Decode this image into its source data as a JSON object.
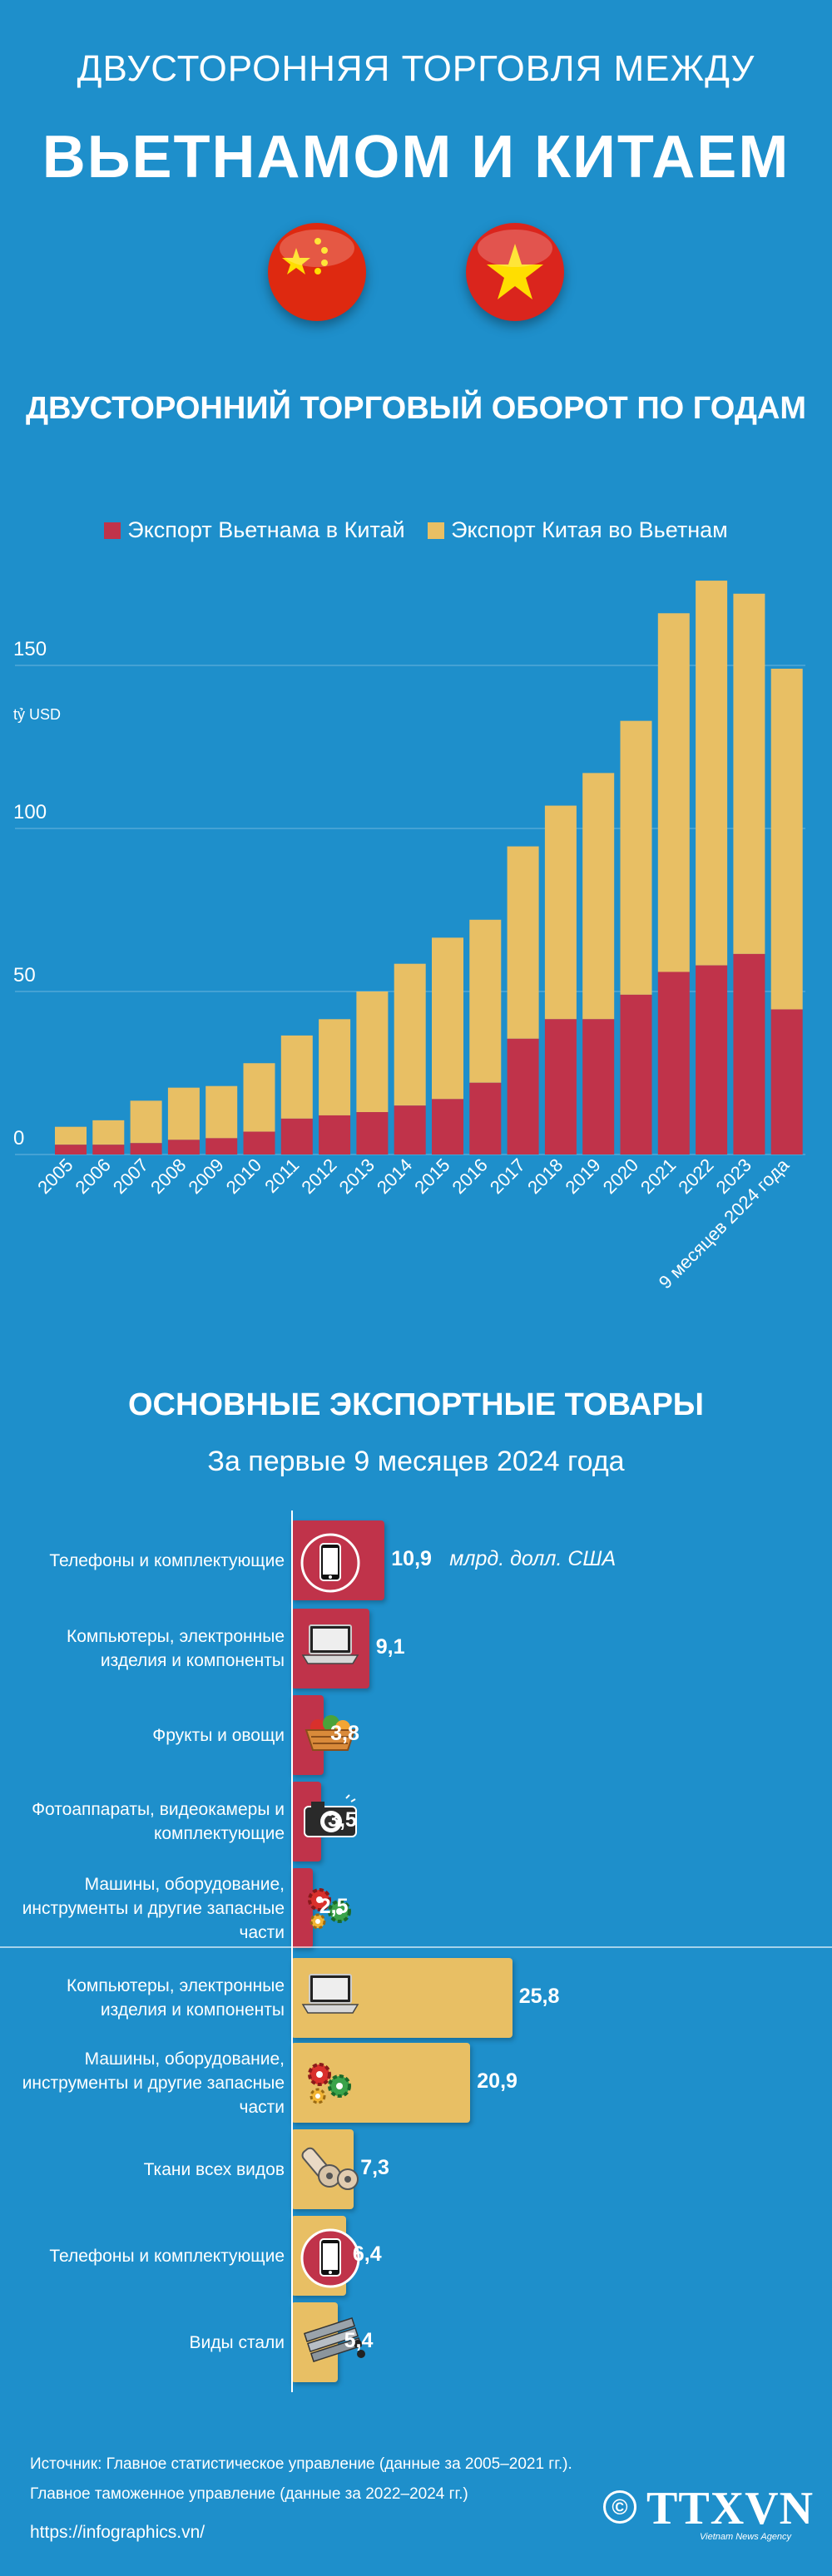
{
  "header": {
    "title_line1": "ДВУСТОРОННЯЯ ТОРГОВЛЯ МЕЖДУ",
    "title_line2": "ВЬЕТНАМОМ И КИТАЕМ"
  },
  "section1": {
    "title": "ДВУСТОРОННИЙ ТОРГОВЫЙ ОБОРОТ ПО ГОДАМ"
  },
  "section2": {
    "title": "ОСНОВНЫЕ ЭКСПОРТНЫЕ ТОВАРЫ",
    "subtitle": "За первые 9 месяцев 2024 года",
    "unit": "млрд. долл. США"
  },
  "colors": {
    "vn_export": "#c0334a",
    "cn_export": "#e8bf64",
    "background": "#1e8fcb"
  },
  "chart_data": [
    {
      "type": "bar",
      "stacked": true,
      "ylabel": "tỷ USD",
      "ylim": [
        0,
        180
      ],
      "yticks": [
        0,
        50,
        100,
        150
      ],
      "grid": true,
      "legend_position": "top",
      "categories": [
        "2005",
        "2006",
        "2007",
        "2008",
        "2009",
        "2010",
        "2011",
        "2012",
        "2013",
        "2014",
        "2015",
        "2016",
        "2017",
        "2018",
        "2019",
        "2020",
        "2021",
        "2022",
        "2023",
        "9 месяцев 2024 года"
      ],
      "series": [
        {
          "name": "Экспорт Вьетнама в Китай",
          "color": "#c0334a",
          "values": [
            3,
            3,
            3.5,
            4.5,
            5,
            7,
            11,
            12,
            13,
            15,
            17,
            22,
            35.5,
            41.5,
            41.5,
            49,
            56,
            58,
            61.5,
            44.5
          ]
        },
        {
          "name": "Экспорт Китая во Вьетнам",
          "color": "#e8bf64",
          "values": [
            5.5,
            7.5,
            13,
            16,
            16,
            21,
            25.5,
            29.5,
            37,
            43.5,
            49.5,
            50,
            59,
            65.5,
            75.5,
            84,
            110,
            118,
            110.5,
            104.5
          ]
        }
      ]
    },
    {
      "type": "bar",
      "orientation": "horizontal",
      "title": "ОСНОВНЫЕ ЭКСПОРТНЫЕ ТОВАРЫ",
      "unit": "млрд. долл. США",
      "series": [
        {
          "name": "Экспорт Вьетнама в Китай",
          "color": "#c0334a",
          "categories": [
            "Телефоны и комплектующие",
            "Компьютеры, электронные изделия и компоненты",
            "Фрукты и овощи",
            "Фотоаппараты, видеокамеры и комплектующие",
            "Машины, оборудование, инструменты и другие запасные части"
          ],
          "values": [
            10.9,
            9.1,
            3.8,
            3.5,
            2.5
          ],
          "labels": [
            "10,9",
            "9,1",
            "3,8",
            "3,5",
            "2,5"
          ],
          "icons": [
            "smartphone-icon",
            "laptop-icon",
            "fruit-basket-icon",
            "camera-icon",
            "gears-icon"
          ]
        },
        {
          "name": "Экспорт Китая во Вьетнам",
          "color": "#e8bf64",
          "categories": [
            "Компьютеры, электронные изделия и компоненты",
            "Машины, оборудование, инструменты и другие запасные части",
            "Ткани всех видов",
            "Телефоны и комплектующие",
            "Виды стали"
          ],
          "values": [
            25.8,
            20.9,
            7.3,
            6.4,
            5.4
          ],
          "labels": [
            "25,8",
            "20,9",
            "7,3",
            "6,4",
            "5,4"
          ],
          "icons": [
            "laptop-icon",
            "gears-icon",
            "fabric-rolls-icon",
            "smartphone-icon",
            "steel-pipes-icon"
          ]
        }
      ]
    }
  ],
  "footer": {
    "source_line1": "Источник: Главное статистическое управление (данные за 2005–2021 гг.).",
    "source_line2": "Главное таможенное управление (данные за 2022–2024 гг.)",
    "url": "https://infographics.vn/",
    "logo_text": "TTXVN",
    "logo_sub": "Vietnam News Agency",
    "copyright": "©"
  }
}
